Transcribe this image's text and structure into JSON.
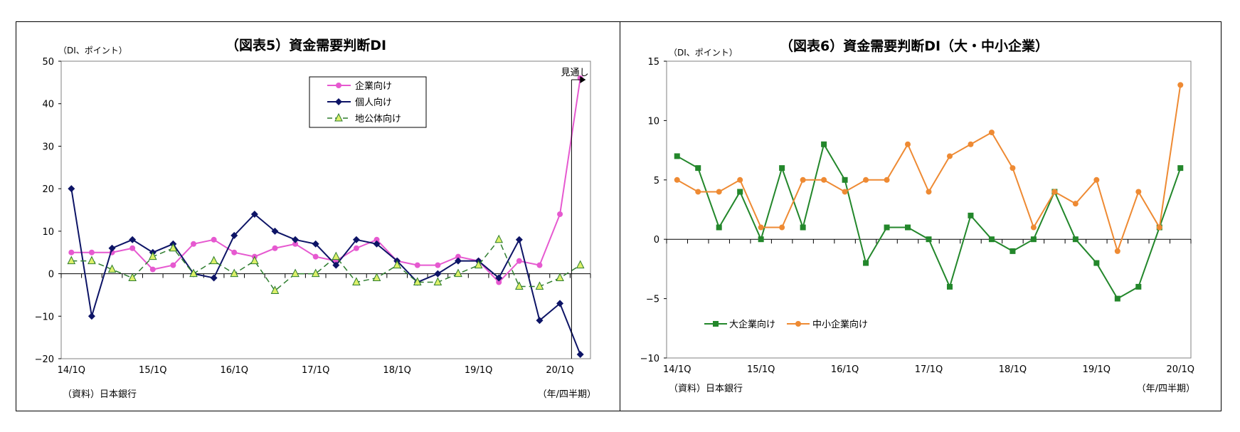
{
  "chart_data": [
    {
      "type": "line",
      "title": "（図表5）資金需要判断DI",
      "unit_label": "（DI、ポイント）",
      "source": "（資料）日本銀行",
      "x_unit_label": "（年/四半期）",
      "forecast_label": "見通し",
      "categories": [
        "14/1Q",
        "14/2Q",
        "14/3Q",
        "14/4Q",
        "15/1Q",
        "15/2Q",
        "15/3Q",
        "15/4Q",
        "16/1Q",
        "16/2Q",
        "16/3Q",
        "16/4Q",
        "17/1Q",
        "17/2Q",
        "17/3Q",
        "17/4Q",
        "18/1Q",
        "18/2Q",
        "18/3Q",
        "18/4Q",
        "19/1Q",
        "19/2Q",
        "19/3Q",
        "19/4Q",
        "20/1Q",
        "20/2Q"
      ],
      "x_tick_labels": [
        "14/1Q",
        "15/1Q",
        "16/1Q",
        "17/1Q",
        "18/1Q",
        "19/1Q",
        "20/1Q"
      ],
      "ylim": [
        -20,
        50
      ],
      "y_ticks": [
        -20,
        -10,
        0,
        10,
        20,
        30,
        40,
        50
      ],
      "legend_position": "top-center-right",
      "series": [
        {
          "name": "企業向け",
          "color": "#e659d0",
          "marker": "circle",
          "values": [
            5,
            5,
            5,
            6,
            1,
            2,
            7,
            8,
            5,
            4,
            6,
            7,
            4,
            3,
            6,
            8,
            3,
            2,
            2,
            4,
            3,
            -2,
            3,
            2,
            14,
            46
          ]
        },
        {
          "name": "個人向け",
          "color": "#0d1466",
          "marker": "diamond",
          "values": [
            20,
            -10,
            6,
            8,
            5,
            7,
            0,
            -1,
            9,
            14,
            10,
            8,
            7,
            2,
            8,
            7,
            3,
            -2,
            0,
            3,
            3,
            -1,
            8,
            -11,
            -7,
            -19
          ]
        },
        {
          "name": "地公体向け",
          "color": "#2e7d2e",
          "marker": "triangle",
          "marker_fill": "#ddf06a",
          "dashed": true,
          "values": [
            3,
            3,
            1,
            -1,
            4,
            6,
            0,
            3,
            0,
            3,
            -4,
            0,
            0,
            4,
            -2,
            -1,
            2,
            -2,
            -2,
            0,
            2,
            8,
            -3,
            -3,
            -1,
            2
          ]
        }
      ]
    },
    {
      "type": "line",
      "title": "（図表6）資金需要判断DI（大・中小企業）",
      "unit_label": "（DI、ポイント）",
      "source": "（資料）日本銀行",
      "x_unit_label": "（年/四半期）",
      "categories": [
        "14/1Q",
        "14/2Q",
        "14/3Q",
        "14/4Q",
        "15/1Q",
        "15/2Q",
        "15/3Q",
        "15/4Q",
        "16/1Q",
        "16/2Q",
        "16/3Q",
        "16/4Q",
        "17/1Q",
        "17/2Q",
        "17/3Q",
        "17/4Q",
        "18/1Q",
        "18/2Q",
        "18/3Q",
        "18/4Q",
        "19/1Q",
        "19/2Q",
        "19/3Q",
        "19/4Q",
        "20/1Q"
      ],
      "x_tick_labels": [
        "14/1Q",
        "15/1Q",
        "16/1Q",
        "17/1Q",
        "18/1Q",
        "19/1Q",
        "20/1Q"
      ],
      "ylim": [
        -10,
        15
      ],
      "y_ticks": [
        -10,
        -5,
        0,
        5,
        10,
        15
      ],
      "legend_position": "bottom-left",
      "series": [
        {
          "name": "大企業向け",
          "color": "#23872b",
          "marker": "square",
          "values": [
            7,
            6,
            1,
            4,
            0,
            6,
            1,
            8,
            5,
            -2,
            1,
            1,
            0,
            -4,
            2,
            0,
            -1,
            0,
            4,
            0,
            -2,
            -5,
            -4,
            1,
            6
          ]
        },
        {
          "name": "中小企業向け",
          "color": "#ee8a33",
          "marker": "circle",
          "values": [
            5,
            4,
            4,
            5,
            1,
            1,
            5,
            5,
            4,
            5,
            5,
            8,
            4,
            7,
            8,
            9,
            6,
            1,
            4,
            3,
            5,
            -1,
            4,
            1,
            13
          ]
        }
      ]
    }
  ]
}
